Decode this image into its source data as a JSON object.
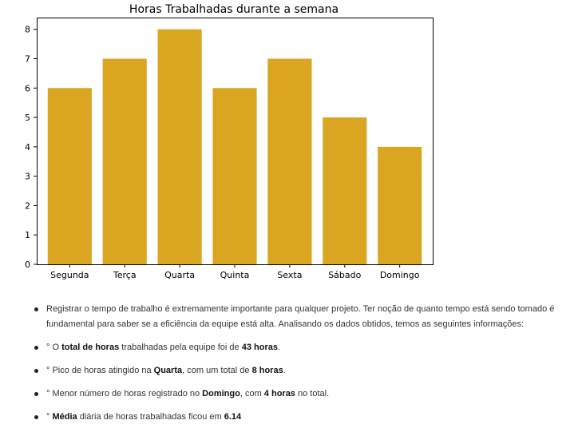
{
  "chart_data": {
    "type": "bar",
    "title": "Horas Trabalhadas durante a semana",
    "categories": [
      "Segunda",
      "Terça",
      "Quarta",
      "Quinta",
      "Sexta",
      "Sábado",
      "Domingo"
    ],
    "values": [
      6,
      7,
      8,
      6,
      7,
      5,
      4
    ],
    "xlabel": "",
    "ylabel": "",
    "ylim": [
      0,
      8.4
    ],
    "yticks": [
      0,
      1,
      2,
      3,
      4,
      5,
      6,
      7,
      8
    ],
    "bar_color": "#DAA520",
    "grid": false
  },
  "notes": [
    {
      "parts": [
        {
          "t": "Registrar o tempo de trabalho é extremamente importante para qualquer projeto. Ter noção de quanto tempo está sendo tomado é fundamental para saber se a eficiência da equipe está alta. Analisando os dados obtidos, temos as seguintes informações:"
        }
      ]
    },
    {
      "parts": [
        {
          "t": "° O "
        },
        {
          "t": "total de horas",
          "b": true
        },
        {
          "t": " trabalhadas pela equipe foi de "
        },
        {
          "t": "43 horas",
          "b": true
        },
        {
          "t": "."
        }
      ]
    },
    {
      "parts": [
        {
          "t": "° Pico de horas atingido na "
        },
        {
          "t": "Quarta",
          "b": true
        },
        {
          "t": ", com um total de "
        },
        {
          "t": "8 horas",
          "b": true
        },
        {
          "t": "."
        }
      ]
    },
    {
      "parts": [
        {
          "t": "° Menor número de horas registrado no "
        },
        {
          "t": "Domingo",
          "b": true
        },
        {
          "t": ", com "
        },
        {
          "t": "4 horas",
          "b": true
        },
        {
          "t": " no total."
        }
      ]
    },
    {
      "parts": [
        {
          "t": "° "
        },
        {
          "t": "Média",
          "b": true
        },
        {
          "t": " diária de horas trabalhadas ficou em "
        },
        {
          "t": "6.14",
          "b": true
        }
      ]
    }
  ]
}
